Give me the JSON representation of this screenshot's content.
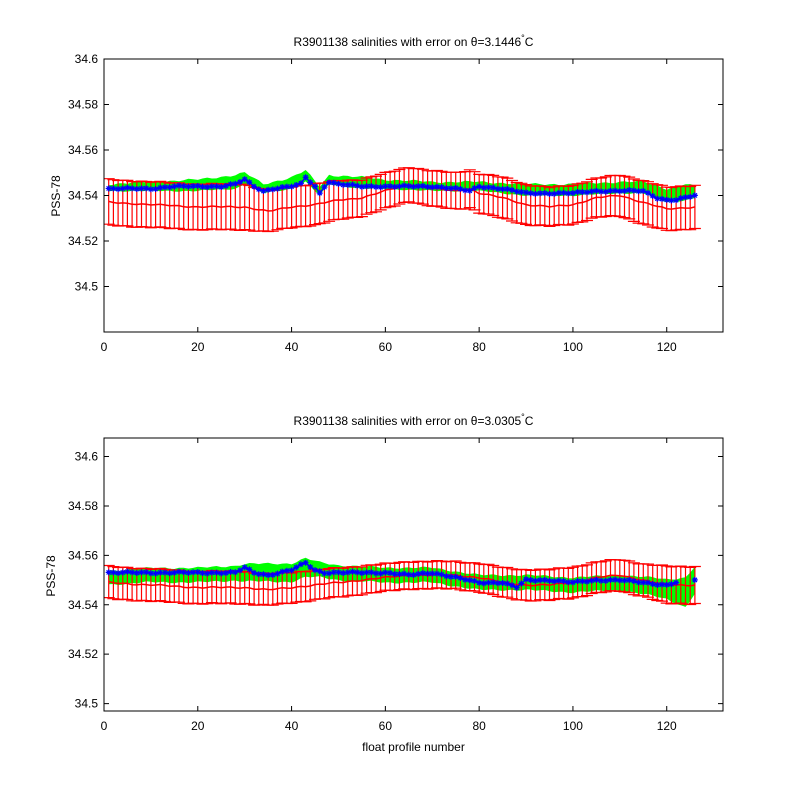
{
  "figure": {
    "background": "#ffffff"
  },
  "chart_data": [
    {
      "type": "line",
      "title_prefix": "R3901138 salinities with error on ",
      "title_theta": "θ",
      "title_value": "=3.1446",
      "title_degree": "°",
      "title_unit": "C",
      "xlabel": "",
      "ylabel": "PSS-78",
      "xlim": [
        0,
        132
      ],
      "ylim": [
        34.48,
        34.6
      ],
      "xticks": [
        0,
        20,
        40,
        60,
        80,
        100,
        120
      ],
      "yticks": [
        34.5,
        34.52,
        34.54,
        34.56,
        34.58,
        34.6
      ],
      "ytick_labels": [
        "34.5",
        "34.52",
        "34.54",
        "34.56",
        "34.58",
        "34.6"
      ],
      "profile_start": 1,
      "profile_end": 126,
      "series": [
        {
          "role": "float_salinity",
          "color": "#0000ff",
          "marker": "*",
          "keypoints": [
            [
              1,
              34.543
            ],
            [
              5,
              34.543
            ],
            [
              10,
              34.543
            ],
            [
              15,
              34.544
            ],
            [
              20,
              34.544
            ],
            [
              25,
              34.544
            ],
            [
              28,
              34.545
            ],
            [
              30,
              34.547
            ],
            [
              32,
              34.544
            ],
            [
              34,
              34.542
            ],
            [
              36,
              34.543
            ],
            [
              40,
              34.544
            ],
            [
              42,
              34.545
            ],
            [
              43,
              34.548
            ],
            [
              44,
              34.546
            ],
            [
              45,
              34.544
            ],
            [
              46,
              34.541
            ],
            [
              47,
              34.544
            ],
            [
              48,
              34.546
            ],
            [
              50,
              34.545
            ],
            [
              55,
              34.544
            ],
            [
              60,
              34.544
            ],
            [
              65,
              34.544
            ],
            [
              70,
              34.544
            ],
            [
              75,
              34.543
            ],
            [
              78,
              34.542
            ],
            [
              80,
              34.544
            ],
            [
              85,
              34.543
            ],
            [
              90,
              34.541
            ],
            [
              95,
              34.541
            ],
            [
              100,
              34.541
            ],
            [
              105,
              34.542
            ],
            [
              110,
              34.542
            ],
            [
              115,
              34.542
            ],
            [
              118,
              34.539
            ],
            [
              120,
              34.538
            ],
            [
              122,
              34.538
            ],
            [
              124,
              34.539
            ],
            [
              126,
              34.54
            ]
          ]
        },
        {
          "role": "mapped_salinity",
          "color": "#ff0000",
          "keypoints": [
            [
              1,
              34.537
            ],
            [
              10,
              34.536
            ],
            [
              20,
              34.535
            ],
            [
              30,
              34.535
            ],
            [
              35,
              34.533
            ],
            [
              40,
              34.535
            ],
            [
              45,
              34.536
            ],
            [
              50,
              34.538
            ],
            [
              55,
              34.539
            ],
            [
              60,
              34.542
            ],
            [
              65,
              34.545
            ],
            [
              70,
              34.543
            ],
            [
              75,
              34.542
            ],
            [
              78,
              34.543
            ],
            [
              80,
              34.541
            ],
            [
              85,
              34.539
            ],
            [
              90,
              34.536
            ],
            [
              95,
              34.535
            ],
            [
              100,
              34.536
            ],
            [
              105,
              34.539
            ],
            [
              110,
              34.54
            ],
            [
              115,
              34.537
            ],
            [
              120,
              34.534
            ],
            [
              126,
              34.535
            ]
          ]
        },
        {
          "role": "mapped_error",
          "color": "#ff0000",
          "keypoints": [
            [
              1,
              0.01
            ],
            [
              30,
              0.01
            ],
            [
              35,
              0.009
            ],
            [
              45,
              0.009
            ],
            [
              55,
              0.008
            ],
            [
              65,
              0.0075
            ],
            [
              75,
              0.008
            ],
            [
              85,
              0.009
            ],
            [
              95,
              0.0085
            ],
            [
              105,
              0.0085
            ],
            [
              115,
              0.0095
            ],
            [
              126,
              0.0095
            ]
          ]
        },
        {
          "role": "green_band",
          "color": "#00ff00",
          "keypoints": [
            [
              1,
              34.542,
              34.545
            ],
            [
              10,
              34.542,
              34.546
            ],
            [
              20,
              34.542,
              34.547
            ],
            [
              28,
              34.543,
              34.549
            ],
            [
              30,
              34.545,
              34.55
            ],
            [
              34,
              34.541,
              34.545
            ],
            [
              40,
              34.543,
              34.548
            ],
            [
              43,
              34.546,
              34.551
            ],
            [
              46,
              34.54,
              34.544
            ],
            [
              48,
              34.545,
              34.549
            ],
            [
              55,
              34.543,
              34.548
            ],
            [
              60,
              34.543,
              34.547
            ],
            [
              70,
              34.542,
              34.546
            ],
            [
              80,
              34.542,
              34.546
            ],
            [
              90,
              34.54,
              34.545
            ],
            [
              100,
              34.54,
              34.545
            ],
            [
              110,
              34.541,
              34.546
            ],
            [
              115,
              34.541,
              34.546
            ],
            [
              120,
              34.537,
              34.543
            ],
            [
              124,
              34.538,
              34.545
            ],
            [
              126,
              34.539,
              34.544
            ]
          ]
        }
      ]
    },
    {
      "type": "line",
      "title_prefix": "R3901138 salinities with error on ",
      "title_theta": "θ",
      "title_value": "=3.0305",
      "title_degree": "°",
      "title_unit": "C",
      "xlabel": "float profile number",
      "ylabel": "PSS-78",
      "xlim": [
        0,
        132
      ],
      "ylim": [
        34.497,
        34.6075
      ],
      "xticks": [
        0,
        20,
        40,
        60,
        80,
        100,
        120
      ],
      "yticks": [
        34.5,
        34.52,
        34.54,
        34.56,
        34.58,
        34.6
      ],
      "ytick_labels": [
        "34.5",
        "34.52",
        "34.54",
        "34.56",
        "34.58",
        "34.6"
      ],
      "profile_start": 1,
      "profile_end": 126,
      "series": [
        {
          "role": "float_salinity",
          "color": "#0000ff",
          "marker": "*",
          "keypoints": [
            [
              1,
              34.553
            ],
            [
              10,
              34.553
            ],
            [
              20,
              34.553
            ],
            [
              28,
              34.553
            ],
            [
              30,
              34.555
            ],
            [
              32,
              34.553
            ],
            [
              35,
              34.552
            ],
            [
              40,
              34.554
            ],
            [
              43,
              34.557
            ],
            [
              45,
              34.554
            ],
            [
              47,
              34.553
            ],
            [
              50,
              34.553
            ],
            [
              55,
              34.553
            ],
            [
              60,
              34.553
            ],
            [
              65,
              34.552
            ],
            [
              70,
              34.553
            ],
            [
              75,
              34.551
            ],
            [
              80,
              34.549
            ],
            [
              85,
              34.549
            ],
            [
              88,
              34.547
            ],
            [
              90,
              34.55
            ],
            [
              95,
              34.55
            ],
            [
              100,
              34.549
            ],
            [
              105,
              34.55
            ],
            [
              110,
              34.55
            ],
            [
              115,
              34.549
            ],
            [
              120,
              34.548
            ],
            [
              122,
              34.549
            ],
            [
              126,
              34.55
            ]
          ]
        },
        {
          "role": "mapped_salinity",
          "color": "#ff0000",
          "keypoints": [
            [
              1,
              34.549
            ],
            [
              10,
              34.548
            ],
            [
              20,
              34.547
            ],
            [
              30,
              34.547
            ],
            [
              35,
              34.546
            ],
            [
              40,
              34.547
            ],
            [
              45,
              34.548
            ],
            [
              50,
              34.549
            ],
            [
              55,
              34.55
            ],
            [
              60,
              34.551
            ],
            [
              65,
              34.552
            ],
            [
              70,
              34.552
            ],
            [
              75,
              34.552
            ],
            [
              80,
              34.551
            ],
            [
              85,
              34.549
            ],
            [
              90,
              34.548
            ],
            [
              95,
              34.548
            ],
            [
              100,
              34.549
            ],
            [
              105,
              34.551
            ],
            [
              110,
              34.552
            ],
            [
              115,
              34.55
            ],
            [
              120,
              34.548
            ],
            [
              126,
              34.548
            ]
          ]
        },
        {
          "role": "mapped_error",
          "color": "#ff0000",
          "keypoints": [
            [
              1,
              0.0065
            ],
            [
              30,
              0.0065
            ],
            [
              45,
              0.006
            ],
            [
              60,
              0.0055
            ],
            [
              75,
              0.0055
            ],
            [
              90,
              0.0062
            ],
            [
              105,
              0.0062
            ],
            [
              115,
              0.0065
            ],
            [
              120,
              0.0075
            ],
            [
              126,
              0.0075
            ]
          ]
        },
        {
          "role": "green_band",
          "color": "#00ff00",
          "keypoints": [
            [
              1,
              34.551
            ],
            [
              10,
              34.552
            ],
            [
              20,
              34.552
            ],
            [
              30,
              34.553
            ],
            [
              40,
              34.553
            ],
            [
              43,
              34.555
            ],
            [
              50,
              34.553
            ],
            [
              60,
              34.552
            ],
            [
              70,
              34.552
            ],
            [
              80,
              34.549
            ],
            [
              90,
              34.549
            ],
            [
              100,
              34.548
            ],
            [
              110,
              34.549
            ],
            [
              118,
              34.547
            ],
            [
              124,
              34.545
            ],
            [
              126,
              34.55
            ]
          ],
          "halfwidth_keypoints": [
            [
              1,
              0.0028
            ],
            [
              28,
              0.003
            ],
            [
              30,
              0.0035
            ],
            [
              43,
              0.0038
            ],
            [
              46,
              0.003
            ],
            [
              60,
              0.003
            ],
            [
              80,
              0.003
            ],
            [
              110,
              0.003
            ],
            [
              120,
              0.004
            ],
            [
              124,
              0.006
            ],
            [
              126,
              0.0055
            ]
          ]
        }
      ]
    }
  ]
}
